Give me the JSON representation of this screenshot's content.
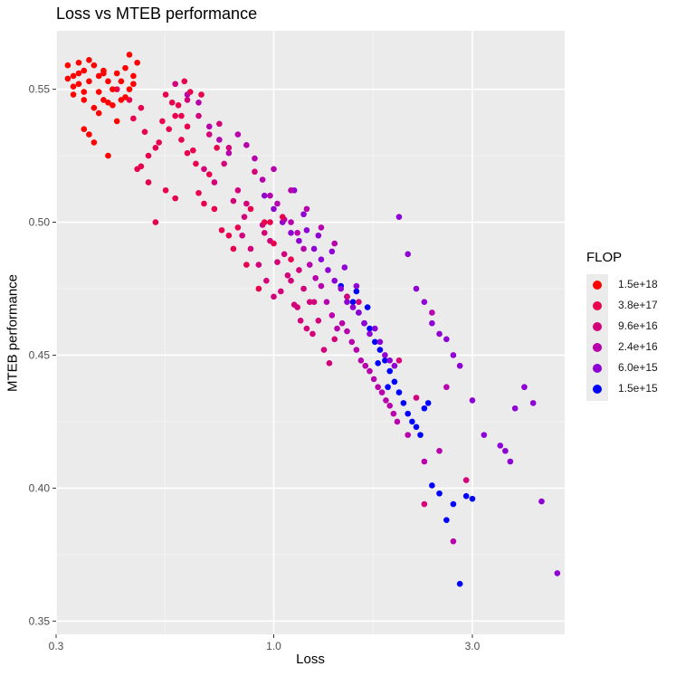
{
  "chart_data": {
    "type": "scatter",
    "title": "Loss vs MTEB performance",
    "xlabel": "Loss",
    "ylabel": "MTEB performance",
    "x_scale": "log10",
    "xlim": [
      0.3,
      5.0
    ],
    "ylim": [
      0.345,
      0.572
    ],
    "x_ticks": [
      0.3,
      1.0,
      3.0
    ],
    "x_tick_labels": [
      "0.3",
      "1.0",
      "3.0"
    ],
    "y_ticks": [
      0.35,
      0.4,
      0.45,
      0.5,
      0.55
    ],
    "y_tick_labels": [
      "0.35",
      "0.40",
      "0.45",
      "0.50",
      "0.55"
    ],
    "legend": {
      "title": "FLOP",
      "position": "right",
      "entries": [
        {
          "label": "1.5e+18",
          "color": "#ff0000"
        },
        {
          "label": "3.8e+17",
          "color": "#e8004d"
        },
        {
          "label": "9.6e+16",
          "color": "#d3007a"
        },
        {
          "label": "2.4e+16",
          "color": "#b700ab"
        },
        {
          "label": "6.0e+15",
          "color": "#8e00d4"
        },
        {
          "label": "1.5e+15",
          "color": "#0000ff"
        }
      ]
    },
    "series": [
      {
        "name": "1.5e+18",
        "x": [
          0.32,
          0.33,
          0.33,
          0.34,
          0.34,
          0.35,
          0.35,
          0.36,
          0.36,
          0.37,
          0.37,
          0.38,
          0.38,
          0.39,
          0.39,
          0.4,
          0.4,
          0.41,
          0.42,
          0.43,
          0.43,
          0.44,
          0.45,
          0.45,
          0.46,
          0.47,
          0.35,
          0.37,
          0.4,
          0.42,
          0.36,
          0.44,
          0.33,
          0.38,
          0.41,
          0.46,
          0.39,
          0.35,
          0.32,
          0.34
        ],
        "y": [
          0.559,
          0.555,
          0.548,
          0.56,
          0.552,
          0.557,
          0.546,
          0.561,
          0.553,
          0.559,
          0.543,
          0.555,
          0.549,
          0.546,
          0.556,
          0.553,
          0.545,
          0.55,
          0.556,
          0.553,
          0.546,
          0.558,
          0.563,
          0.55,
          0.552,
          0.56,
          0.535,
          0.53,
          0.525,
          0.538,
          0.533,
          0.547,
          0.551,
          0.541,
          0.544,
          0.555,
          0.557,
          0.549,
          0.554,
          0.556
        ]
      },
      {
        "name": "3.8e+17",
        "x": [
          0.42,
          0.45,
          0.48,
          0.5,
          0.52,
          0.47,
          0.55,
          0.58,
          0.6,
          0.62,
          0.65,
          0.55,
          0.5,
          0.53,
          0.57,
          0.61,
          0.66,
          0.7,
          0.72,
          0.75,
          0.52,
          0.56,
          0.6,
          0.64,
          0.68,
          0.78,
          0.82,
          0.88,
          0.95,
          1.0,
          0.46,
          0.49,
          0.54,
          0.59,
          0.63,
          0.67,
          0.73,
          0.8,
          0.86,
          0.92,
          0.98,
          1.05,
          1.1,
          0.48,
          0.58,
          0.62
        ],
        "y": [
          0.55,
          0.546,
          0.543,
          0.525,
          0.528,
          0.52,
          0.548,
          0.54,
          0.531,
          0.526,
          0.522,
          0.512,
          0.515,
          0.53,
          0.545,
          0.553,
          0.511,
          0.518,
          0.505,
          0.497,
          0.5,
          0.535,
          0.54,
          0.527,
          0.507,
          0.495,
          0.498,
          0.505,
          0.5,
          0.492,
          0.539,
          0.534,
          0.538,
          0.544,
          0.549,
          0.548,
          0.528,
          0.49,
          0.484,
          0.475,
          0.5,
          0.502,
          0.486,
          0.521,
          0.509,
          0.536
        ]
      },
      {
        "name": "9.6e+16",
        "x": [
          0.58,
          0.62,
          0.66,
          0.7,
          0.74,
          0.78,
          0.82,
          0.86,
          0.9,
          0.94,
          0.98,
          1.02,
          1.06,
          1.1,
          1.14,
          1.18,
          1.22,
          0.72,
          0.76,
          0.8,
          0.84,
          0.88,
          0.92,
          0.96,
          1.0,
          1.04,
          1.08,
          1.12,
          1.16,
          1.2,
          1.24,
          1.28,
          1.32,
          1.36,
          1.4,
          1.5,
          1.6,
          2.0,
          2.2,
          2.3,
          2.9,
          0.68,
          0.85,
          0.95,
          1.15,
          1.25
        ],
        "y": [
          0.552,
          0.546,
          0.54,
          0.533,
          0.537,
          0.528,
          0.512,
          0.507,
          0.519,
          0.499,
          0.493,
          0.485,
          0.488,
          0.478,
          0.468,
          0.475,
          0.47,
          0.515,
          0.522,
          0.508,
          0.495,
          0.49,
          0.484,
          0.478,
          0.472,
          0.474,
          0.48,
          0.469,
          0.463,
          0.46,
          0.458,
          0.463,
          0.452,
          0.447,
          0.456,
          0.472,
          0.47,
          0.448,
          0.434,
          0.394,
          0.403,
          0.52,
          0.502,
          0.496,
          0.482,
          0.47
        ]
      },
      {
        "name": "2.4e+16",
        "x": [
          0.62,
          0.66,
          0.7,
          0.74,
          0.78,
          0.82,
          0.86,
          0.9,
          0.94,
          0.98,
          1.02,
          1.06,
          1.1,
          1.14,
          1.18,
          1.22,
          1.26,
          1.3,
          1.34,
          1.38,
          1.42,
          1.46,
          1.5,
          1.54,
          1.58,
          1.62,
          1.66,
          1.7,
          1.74,
          1.78,
          1.82,
          1.86,
          1.9,
          1.94,
          1.98,
          2.1,
          2.3,
          2.5,
          2.6,
          2.7,
          1.0,
          1.1,
          1.2,
          1.3,
          1.4,
          2.4
        ],
        "y": [
          0.548,
          0.545,
          0.536,
          0.531,
          0.526,
          0.533,
          0.529,
          0.524,
          0.516,
          0.51,
          0.507,
          0.501,
          0.5,
          0.496,
          0.49,
          0.484,
          0.479,
          0.476,
          0.47,
          0.465,
          0.46,
          0.462,
          0.459,
          0.455,
          0.452,
          0.448,
          0.446,
          0.444,
          0.441,
          0.438,
          0.436,
          0.433,
          0.431,
          0.428,
          0.425,
          0.42,
          0.41,
          0.414,
          0.438,
          0.38,
          0.52,
          0.512,
          0.505,
          0.498,
          0.492,
          0.466
        ]
      },
      {
        "name": "6.0e+15",
        "x": [
          0.95,
          1.0,
          1.05,
          1.1,
          1.15,
          1.2,
          1.25,
          1.3,
          1.35,
          1.4,
          1.45,
          1.5,
          1.55,
          1.6,
          1.65,
          1.7,
          1.75,
          1.8,
          1.85,
          1.9,
          1.95,
          2.0,
          2.1,
          2.2,
          2.3,
          2.4,
          2.5,
          2.6,
          2.7,
          2.8,
          3.0,
          3.2,
          3.5,
          3.6,
          3.7,
          3.8,
          4.0,
          4.2,
          4.4,
          4.8,
          1.12,
          1.18,
          1.28,
          1.38,
          1.48,
          1.58
        ],
        "y": [
          0.51,
          0.505,
          0.5,
          0.496,
          0.493,
          0.497,
          0.49,
          0.486,
          0.482,
          0.478,
          0.475,
          0.47,
          0.468,
          0.466,
          0.462,
          0.458,
          0.46,
          0.455,
          0.45,
          0.448,
          0.446,
          0.502,
          0.488,
          0.475,
          0.47,
          0.462,
          0.458,
          0.456,
          0.45,
          0.446,
          0.433,
          0.42,
          0.416,
          0.414,
          0.41,
          0.43,
          0.438,
          0.432,
          0.395,
          0.368,
          0.512,
          0.503,
          0.495,
          0.489,
          0.483,
          0.476
        ]
      },
      {
        "name": "1.5e+15",
        "x": [
          1.45,
          1.5,
          1.55,
          1.6,
          1.65,
          1.7,
          1.75,
          1.8,
          1.85,
          1.9,
          1.95,
          2.0,
          2.05,
          2.1,
          2.15,
          2.2,
          2.25,
          2.3,
          2.35,
          2.4,
          2.5,
          2.6,
          2.7,
          2.8,
          2.9,
          3.0,
          1.58,
          1.68,
          1.78,
          1.88
        ],
        "y": [
          0.476,
          0.472,
          0.47,
          0.466,
          0.462,
          0.46,
          0.455,
          0.452,
          0.448,
          0.444,
          0.44,
          0.436,
          0.432,
          0.428,
          0.425,
          0.423,
          0.42,
          0.43,
          0.432,
          0.401,
          0.398,
          0.388,
          0.394,
          0.364,
          0.397,
          0.396,
          0.474,
          0.468,
          0.447,
          0.438
        ]
      }
    ]
  }
}
